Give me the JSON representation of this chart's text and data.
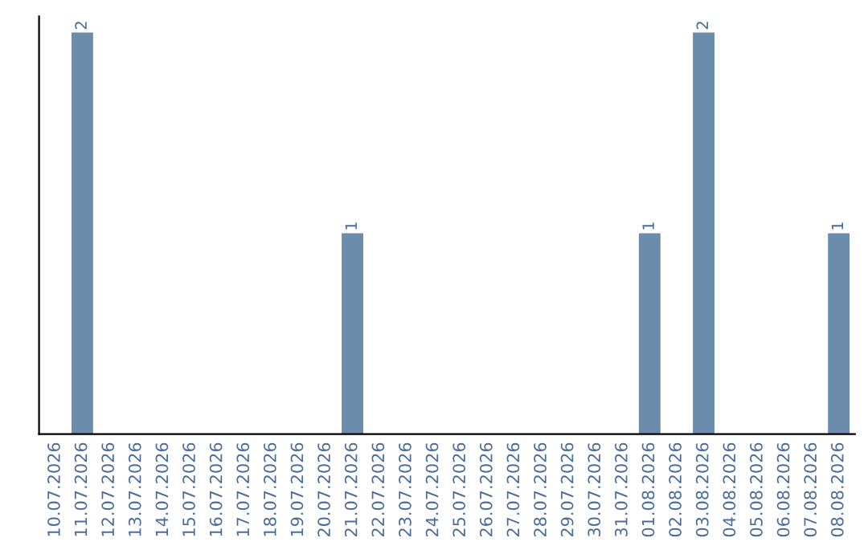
{
  "chart_data": {
    "type": "bar",
    "categories": [
      "10.07.2026",
      "11.07.2026",
      "12.07.2026",
      "13.07.2026",
      "14.07.2026",
      "15.07.2026",
      "16.07.2026",
      "17.07.2026",
      "18.07.2026",
      "19.07.2026",
      "20.07.2026",
      "21.07.2026",
      "22.07.2026",
      "23.07.2026",
      "24.07.2026",
      "25.07.2026",
      "26.07.2026",
      "27.07.2026",
      "28.07.2026",
      "29.07.2026",
      "30.07.2026",
      "31.07.2026",
      "01.08.2026",
      "02.08.2026",
      "03.08.2026",
      "04.08.2026",
      "05.08.2026",
      "06.08.2026",
      "07.08.2026",
      "08.08.2026"
    ],
    "values": [
      0,
      2,
      0,
      0,
      0,
      0,
      0,
      0,
      0,
      0,
      0,
      1,
      0,
      0,
      0,
      0,
      0,
      0,
      0,
      0,
      0,
      0,
      1,
      0,
      2,
      0,
      0,
      0,
      0,
      1
    ],
    "value_labels": [
      null,
      "2",
      null,
      null,
      null,
      null,
      null,
      null,
      null,
      null,
      null,
      "1",
      null,
      null,
      null,
      null,
      null,
      null,
      null,
      null,
      null,
      null,
      "1",
      null,
      "2",
      null,
      null,
      null,
      null,
      "1"
    ],
    "color": "#6b8cab",
    "ylim": [
      0,
      2.08
    ],
    "tick_labels": "x",
    "grid": false,
    "legend": false
  }
}
